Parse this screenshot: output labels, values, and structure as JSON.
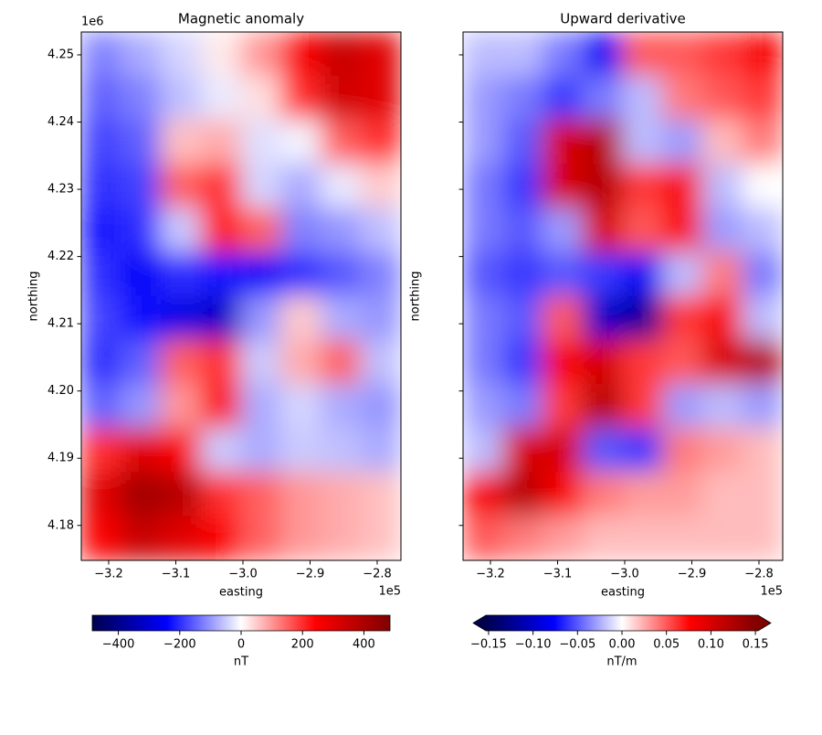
{
  "chart_data": [
    {
      "type": "heatmap",
      "title": "Magnetic anomaly",
      "xlabel": "easting",
      "ylabel": "northing",
      "x_offset": "1e5",
      "y_offset": "1e6",
      "cmap": "seismic",
      "xlim": [
        -324080,
        -276460
      ],
      "ylim": [
        4174800,
        4253400
      ],
      "xticks": [
        {
          "value": -320000,
          "label": "−3.2"
        },
        {
          "value": -310000,
          "label": "−3.1"
        },
        {
          "value": -300000,
          "label": "−3.0"
        },
        {
          "value": -290000,
          "label": "−2.9"
        },
        {
          "value": -280000,
          "label": "−2.8"
        }
      ],
      "yticks": [
        {
          "value": 4180000,
          "label": "4.18"
        },
        {
          "value": 4190000,
          "label": "4.19"
        },
        {
          "value": 4200000,
          "label": "4.20"
        },
        {
          "value": 4210000,
          "label": "4.21"
        },
        {
          "value": 4220000,
          "label": "4.22"
        },
        {
          "value": 4230000,
          "label": "4.23"
        },
        {
          "value": 4240000,
          "label": "4.24"
        },
        {
          "value": 4250000,
          "label": "4.25"
        }
      ],
      "z": [
        [
          -120,
          -80,
          -40,
          20,
          100,
          250,
          350,
          300
        ],
        [
          -150,
          -120,
          -60,
          -20,
          30,
          200,
          330,
          300
        ],
        [
          -180,
          -150,
          60,
          80,
          -30,
          -10,
          150,
          200
        ],
        [
          -200,
          -180,
          150,
          200,
          -40,
          -80,
          -20,
          50
        ],
        [
          -220,
          -200,
          -50,
          220,
          150,
          -120,
          -100,
          -60
        ],
        [
          -200,
          -250,
          -200,
          -220,
          -250,
          -200,
          -160,
          -120
        ],
        [
          -180,
          -230,
          -280,
          -320,
          -100,
          50,
          -80,
          -100
        ],
        [
          -200,
          -150,
          150,
          200,
          -50,
          80,
          150,
          -60
        ],
        [
          -150,
          -100,
          100,
          250,
          -80,
          -40,
          -80,
          -100
        ],
        [
          200,
          300,
          250,
          -50,
          -80,
          -50,
          -60,
          -80
        ],
        [
          300,
          420,
          380,
          200,
          150,
          100,
          80,
          60
        ],
        [
          250,
          350,
          300,
          250,
          150,
          100,
          80,
          60
        ]
      ],
      "colorbar": {
        "label": "nT",
        "vlim": [
          -485,
          485
        ],
        "extend": false,
        "ticks": [
          {
            "value": -400,
            "label": "−400"
          },
          {
            "value": -200,
            "label": "−200"
          },
          0,
          200,
          400
        ]
      }
    },
    {
      "type": "heatmap",
      "title": "Upward derivative",
      "xlabel": "easting",
      "ylabel": "northing",
      "x_offset": "1e5",
      "sharey": true,
      "cmap": "seismic",
      "xlim": [
        -324080,
        -276460
      ],
      "ylim": [
        4174800,
        4253400
      ],
      "xticks": [
        {
          "value": -320000,
          "label": "−3.2"
        },
        {
          "value": -310000,
          "label": "−3.1"
        },
        {
          "value": -300000,
          "label": "−3.0"
        },
        {
          "value": -290000,
          "label": "−2.9"
        },
        {
          "value": -280000,
          "label": "−2.8"
        }
      ],
      "z": [
        [
          -0.02,
          -0.02,
          -0.04,
          -0.08,
          0.05,
          0.05,
          0.06,
          0.08
        ],
        [
          -0.03,
          -0.04,
          -0.06,
          -0.04,
          -0.02,
          0.04,
          0.05,
          0.06
        ],
        [
          -0.03,
          -0.05,
          0.1,
          0.12,
          -0.02,
          -0.03,
          0.02,
          0.04
        ],
        [
          -0.04,
          -0.06,
          0.1,
          0.12,
          0.06,
          0.08,
          -0.02,
          0
        ],
        [
          -0.04,
          -0.05,
          -0.03,
          0.1,
          0.05,
          0.08,
          -0.03,
          -0.02
        ],
        [
          -0.05,
          -0.06,
          -0.05,
          -0.06,
          -0.08,
          -0.02,
          0.04,
          -0.04
        ],
        [
          -0.04,
          -0.05,
          0.05,
          -0.1,
          -0.12,
          0.06,
          0.08,
          -0.02
        ],
        [
          -0.04,
          -0.06,
          0.08,
          0.1,
          0.06,
          0.05,
          0.1,
          0.12
        ],
        [
          -0.03,
          -0.04,
          0.06,
          0.12,
          0.06,
          -0.03,
          -0.02,
          -0.03
        ],
        [
          -0.02,
          0.1,
          0.1,
          -0.05,
          -0.06,
          0.04,
          0.03,
          0.02
        ],
        [
          0.08,
          0.12,
          0.08,
          0.04,
          0.03,
          0.03,
          0.02,
          0.02
        ],
        [
          0.05,
          0.04,
          0.03,
          0.02,
          0.02,
          0.02,
          0.02,
          0.02
        ]
      ],
      "colorbar": {
        "label": "nT/m",
        "vlim": [
          -0.153,
          0.153
        ],
        "extend": true,
        "ticks": [
          {
            "value": -0.15,
            "label": "−0.15"
          },
          {
            "value": -0.1,
            "label": "−0.10"
          },
          {
            "value": -0.05,
            "label": "−0.05"
          },
          {
            "value": 0,
            "label": "0.00"
          },
          0.05,
          {
            "value": 0.1,
            "label": "0.10"
          },
          0.15
        ]
      }
    }
  ]
}
